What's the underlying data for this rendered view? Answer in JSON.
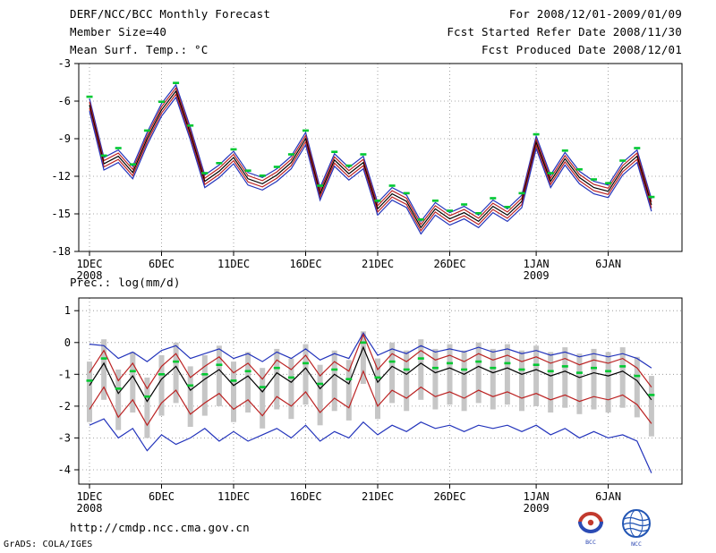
{
  "header": {
    "title": "DERF/NCC/BCC Monthly Forecast",
    "member_size": "Member Size=40",
    "period": "For 2008/12/01-2009/01/09",
    "refer_date": "Fcst Started Refer Date 2008/11/30",
    "produced_date": "Fcst Produced Date 2008/12/01"
  },
  "charts": {
    "temp_label": "Mean Surf. Temp.: °C",
    "prec_label": "Prec.: log(mm/d)"
  },
  "footer": {
    "url": "http://cmdp.ncc.cma.gov.cn",
    "credit": "GrADS: COLA/IGES",
    "logo_bcc": "BCC",
    "logo_ncc": "NCC"
  },
  "chart_data": [
    {
      "type": "line",
      "title": "Mean Surf. Temp.: °C",
      "x_axis": {
        "tick_labels": [
          "1DEC",
          "6DEC",
          "11DEC",
          "16DEC",
          "21DEC",
          "26DEC",
          "1JAN",
          "6JAN"
        ],
        "tick_days": [
          0,
          5,
          10,
          15,
          20,
          25,
          31,
          36
        ],
        "year_labels": [
          {
            "text": "2008",
            "day": 0
          },
          {
            "text": "2009",
            "day": 31
          }
        ],
        "n_days": 40
      },
      "y_axis": {
        "ticks": [
          -3,
          -6,
          -9,
          -12,
          -15,
          -18
        ],
        "ylim": [
          -18,
          -3
        ]
      },
      "series": [
        {
          "name": "ensemble-max",
          "color": "#2233bb",
          "values": [
            -5.8,
            -10.5,
            -9.9,
            -11.2,
            -8.5,
            -6.2,
            -4.7,
            -8.1,
            -11.9,
            -11.1,
            -10.0,
            -11.7,
            -12.1,
            -11.4,
            -10.4,
            -8.5,
            -12.9,
            -10.2,
            -11.3,
            -10.4,
            -14.1,
            -12.9,
            -13.5,
            -15.6,
            -14.1,
            -14.9,
            -14.4,
            -15.1,
            -13.9,
            -14.6,
            -13.5,
            -8.8,
            -11.9,
            -10.1,
            -11.6,
            -12.4,
            -12.7,
            -10.9,
            -9.9,
            -13.8
          ]
        },
        {
          "name": "ensemble-upper-std",
          "color": "#bb2222",
          "values": [
            -6.05,
            -10.75,
            -10.15,
            -11.45,
            -8.75,
            -6.45,
            -4.95,
            -8.35,
            -12.15,
            -11.35,
            -10.25,
            -11.95,
            -12.35,
            -11.65,
            -10.65,
            -8.75,
            -13.15,
            -10.45,
            -11.55,
            -10.65,
            -14.35,
            -13.15,
            -13.75,
            -15.85,
            -14.35,
            -15.15,
            -14.65,
            -15.35,
            -14.15,
            -14.85,
            -13.75,
            -9.05,
            -12.15,
            -10.35,
            -11.85,
            -12.65,
            -12.95,
            -11.15,
            -10.15,
            -14.05
          ]
        },
        {
          "name": "ensemble-mean",
          "color": "#000000",
          "values": [
            -6.3,
            -11.0,
            -10.4,
            -11.7,
            -9.0,
            -6.7,
            -5.2,
            -8.6,
            -12.4,
            -11.6,
            -10.5,
            -12.2,
            -12.6,
            -11.9,
            -10.9,
            -9.0,
            -13.4,
            -10.7,
            -11.8,
            -10.9,
            -14.6,
            -13.4,
            -14.0,
            -16.1,
            -14.6,
            -15.4,
            -14.9,
            -15.6,
            -14.4,
            -15.1,
            -14.0,
            -9.3,
            -12.4,
            -10.6,
            -12.1,
            -12.9,
            -13.2,
            -11.4,
            -10.4,
            -14.3
          ]
        },
        {
          "name": "ensemble-lower-std",
          "color": "#bb2222",
          "values": [
            -6.55,
            -11.25,
            -10.65,
            -11.95,
            -9.25,
            -6.95,
            -5.45,
            -8.85,
            -12.65,
            -11.85,
            -10.75,
            -12.45,
            -12.85,
            -12.15,
            -11.15,
            -9.25,
            -13.65,
            -10.95,
            -12.05,
            -11.15,
            -14.85,
            -13.65,
            -14.25,
            -16.35,
            -14.85,
            -15.65,
            -15.15,
            -15.85,
            -14.65,
            -15.35,
            -14.25,
            -9.55,
            -12.65,
            -10.85,
            -12.35,
            -13.15,
            -13.45,
            -11.65,
            -10.65,
            -14.55
          ]
        },
        {
          "name": "ensemble-min",
          "color": "#2233bb",
          "values": [
            -6.8,
            -11.5,
            -10.9,
            -12.2,
            -9.5,
            -7.2,
            -5.7,
            -9.1,
            -12.9,
            -12.1,
            -11.0,
            -12.7,
            -13.1,
            -12.4,
            -11.4,
            -9.5,
            -13.9,
            -11.2,
            -12.3,
            -11.4,
            -15.1,
            -13.9,
            -14.5,
            -16.6,
            -15.1,
            -15.9,
            -15.4,
            -16.1,
            -14.9,
            -15.6,
            -14.5,
            -9.8,
            -12.9,
            -11.1,
            -12.6,
            -13.4,
            -13.7,
            -11.9,
            -10.9,
            -14.8
          ]
        }
      ],
      "markers": {
        "name": "observation",
        "color": "#00c832",
        "values": [
          -5.65,
          -10.35,
          -9.75,
          -11.05,
          -8.35,
          -6.05,
          -4.55,
          -7.95,
          -11.75,
          -10.95,
          -9.85,
          -11.55,
          -11.95,
          -11.25,
          -10.25,
          -8.35,
          -12.75,
          -10.05,
          -11.15,
          -10.25,
          -13.95,
          -12.75,
          -13.35,
          -15.45,
          -13.95,
          -14.75,
          -14.25,
          -14.95,
          -13.75,
          -14.45,
          -13.35,
          -8.65,
          -11.75,
          -9.95,
          -11.45,
          -12.25,
          -12.55,
          -10.75,
          -9.75,
          -13.65
        ]
      }
    },
    {
      "type": "line",
      "title": "Prec.: log(mm/d)",
      "x_axis": {
        "tick_labels": [
          "1DEC",
          "6DEC",
          "11DEC",
          "16DEC",
          "21DEC",
          "26DEC",
          "1JAN",
          "6JAN"
        ],
        "tick_days": [
          0,
          5,
          10,
          15,
          20,
          25,
          31,
          36
        ],
        "year_labels": [
          {
            "text": "2008",
            "day": 0
          },
          {
            "text": "2009",
            "day": 31
          }
        ],
        "n_days": 40
      },
      "y_axis": {
        "ticks": [
          1,
          0,
          -1,
          -2,
          -3,
          -4
        ],
        "ylim": [
          -4,
          1
        ]
      },
      "bars": {
        "name": "member-spread",
        "color": "#c6c6c6",
        "hi": [
          -0.6,
          0.1,
          -0.85,
          -0.3,
          -1.1,
          -0.4,
          0.0,
          -0.75,
          -0.4,
          -0.1,
          -0.6,
          -0.3,
          -0.8,
          -0.2,
          -0.5,
          -0.05,
          -0.7,
          -0.25,
          -0.55,
          0.35,
          -0.5,
          0.0,
          -0.25,
          0.1,
          -0.2,
          -0.05,
          -0.25,
          0.0,
          -0.2,
          -0.05,
          -0.25,
          -0.1,
          -0.3,
          -0.15,
          -0.35,
          -0.2,
          -0.3,
          -0.15,
          -0.45,
          -1.05
        ],
        "lo": [
          -2.5,
          -1.8,
          -2.75,
          -2.2,
          -3.0,
          -2.3,
          -1.9,
          -2.65,
          -2.3,
          -2.0,
          -2.5,
          -2.2,
          -2.7,
          -2.1,
          -2.4,
          -1.95,
          -2.6,
          -2.15,
          -2.45,
          -1.3,
          -2.4,
          -1.9,
          -2.15,
          -1.8,
          -2.1,
          -1.95,
          -2.15,
          -1.9,
          -2.1,
          -1.95,
          -2.15,
          -2.0,
          -2.2,
          -2.05,
          -2.25,
          -2.1,
          -2.2,
          -2.05,
          -2.35,
          -2.95
        ]
      },
      "series": [
        {
          "name": "ensemble-max",
          "color": "#2233bb",
          "values": [
            -0.05,
            -0.1,
            -0.5,
            -0.3,
            -0.6,
            -0.25,
            -0.1,
            -0.5,
            -0.35,
            -0.2,
            -0.5,
            -0.35,
            -0.6,
            -0.3,
            -0.5,
            -0.2,
            -0.55,
            -0.35,
            -0.5,
            0.3,
            -0.4,
            -0.2,
            -0.35,
            -0.1,
            -0.3,
            -0.2,
            -0.3,
            -0.15,
            -0.3,
            -0.2,
            -0.35,
            -0.25,
            -0.4,
            -0.3,
            -0.45,
            -0.35,
            -0.45,
            -0.35,
            -0.5,
            -0.8
          ]
        },
        {
          "name": "ensemble-upper-std",
          "color": "#bb2222",
          "values": [
            -0.95,
            -0.25,
            -1.2,
            -0.65,
            -1.45,
            -0.75,
            -0.35,
            -1.1,
            -0.75,
            -0.45,
            -0.95,
            -0.65,
            -1.15,
            -0.55,
            -0.85,
            -0.4,
            -1.05,
            -0.6,
            -0.9,
            0.25,
            -0.85,
            -0.35,
            -0.6,
            -0.25,
            -0.55,
            -0.4,
            -0.6,
            -0.35,
            -0.55,
            -0.4,
            -0.6,
            -0.45,
            -0.65,
            -0.5,
            -0.7,
            -0.55,
            -0.65,
            -0.5,
            -0.8,
            -1.4
          ]
        },
        {
          "name": "ensemble-mean",
          "color": "#000000",
          "values": [
            -1.35,
            -0.65,
            -1.6,
            -1.05,
            -1.85,
            -1.15,
            -0.75,
            -1.5,
            -1.15,
            -0.85,
            -1.35,
            -1.05,
            -1.55,
            -0.95,
            -1.25,
            -0.8,
            -1.45,
            -1.0,
            -1.3,
            -0.15,
            -1.25,
            -0.75,
            -1.0,
            -0.65,
            -0.95,
            -0.8,
            -1.0,
            -0.75,
            -0.95,
            -0.8,
            -1.0,
            -0.85,
            -1.05,
            -0.9,
            -1.1,
            -0.95,
            -1.05,
            -0.9,
            -1.2,
            -1.8
          ]
        },
        {
          "name": "ensemble-lower-std",
          "color": "#bb2222",
          "values": [
            -2.1,
            -1.4,
            -2.35,
            -1.8,
            -2.6,
            -1.9,
            -1.5,
            -2.25,
            -1.9,
            -1.6,
            -2.1,
            -1.8,
            -2.3,
            -1.7,
            -2.0,
            -1.55,
            -2.2,
            -1.75,
            -2.05,
            -0.9,
            -2.0,
            -1.5,
            -1.75,
            -1.4,
            -1.7,
            -1.55,
            -1.75,
            -1.5,
            -1.7,
            -1.55,
            -1.75,
            -1.6,
            -1.8,
            -1.65,
            -1.85,
            -1.7,
            -1.8,
            -1.65,
            -1.95,
            -2.55
          ]
        },
        {
          "name": "ensemble-min",
          "color": "#2233bb",
          "values": [
            -2.6,
            -2.4,
            -3.0,
            -2.7,
            -3.4,
            -2.9,
            -3.2,
            -3.0,
            -2.7,
            -3.1,
            -2.8,
            -3.1,
            -2.9,
            -2.7,
            -3.0,
            -2.6,
            -3.1,
            -2.8,
            -3.0,
            -2.5,
            -2.9,
            -2.6,
            -2.8,
            -2.5,
            -2.7,
            -2.6,
            -2.8,
            -2.6,
            -2.7,
            -2.6,
            -2.8,
            -2.6,
            -2.9,
            -2.7,
            -3.0,
            -2.8,
            -3.0,
            -2.9,
            -3.1,
            -4.1
          ]
        }
      ],
      "markers": {
        "name": "observation",
        "color": "#00c832",
        "values": [
          -1.2,
          -0.5,
          -1.45,
          -0.9,
          -1.7,
          -1.0,
          -0.6,
          -1.35,
          -1.0,
          -0.7,
          -1.2,
          -0.9,
          -1.4,
          -0.8,
          -1.1,
          -0.65,
          -1.3,
          -0.85,
          -1.15,
          0.0,
          -1.1,
          -0.6,
          -0.85,
          -0.5,
          -0.8,
          -0.65,
          -0.85,
          -0.6,
          -0.8,
          -0.65,
          -0.85,
          -0.7,
          -0.9,
          -0.75,
          -0.95,
          -0.8,
          -0.9,
          -0.75,
          -1.05,
          -1.65
        ]
      }
    }
  ]
}
